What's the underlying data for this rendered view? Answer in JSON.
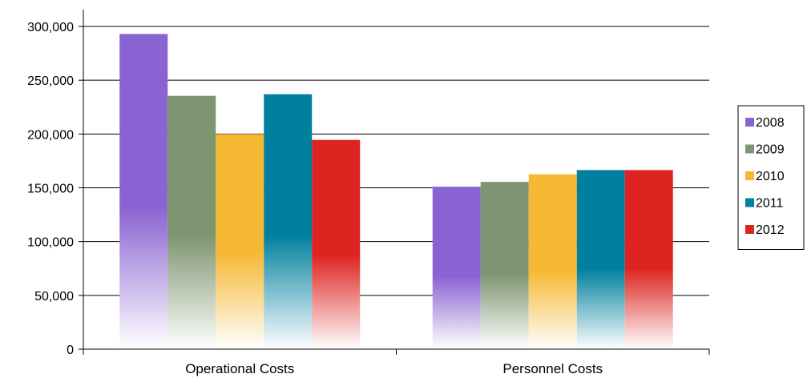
{
  "chart_data": {
    "type": "bar",
    "categories": [
      "Operational Costs",
      "Personnel Costs"
    ],
    "series": [
      {
        "name": "2008",
        "values": [
          293000,
          151000
        ],
        "color": "#8a63d2"
      },
      {
        "name": "2009",
        "values": [
          235500,
          155500
        ],
        "color": "#7d9570"
      },
      {
        "name": "2010",
        "values": [
          200000,
          162500
        ],
        "color": "#f5b833"
      },
      {
        "name": "2011",
        "values": [
          237000,
          166500
        ],
        "color": "#007f9e"
      },
      {
        "name": "2012",
        "values": [
          194500,
          166500
        ],
        "color": "#dd2420"
      }
    ],
    "yticks": [
      "0",
      "50,000",
      "100,000",
      "150,000",
      "200,000",
      "250,000",
      "300,000"
    ],
    "ylim": [
      0,
      300000
    ],
    "grid": true,
    "legend_position": "right",
    "title": "",
    "xlabel": "",
    "ylabel": ""
  }
}
